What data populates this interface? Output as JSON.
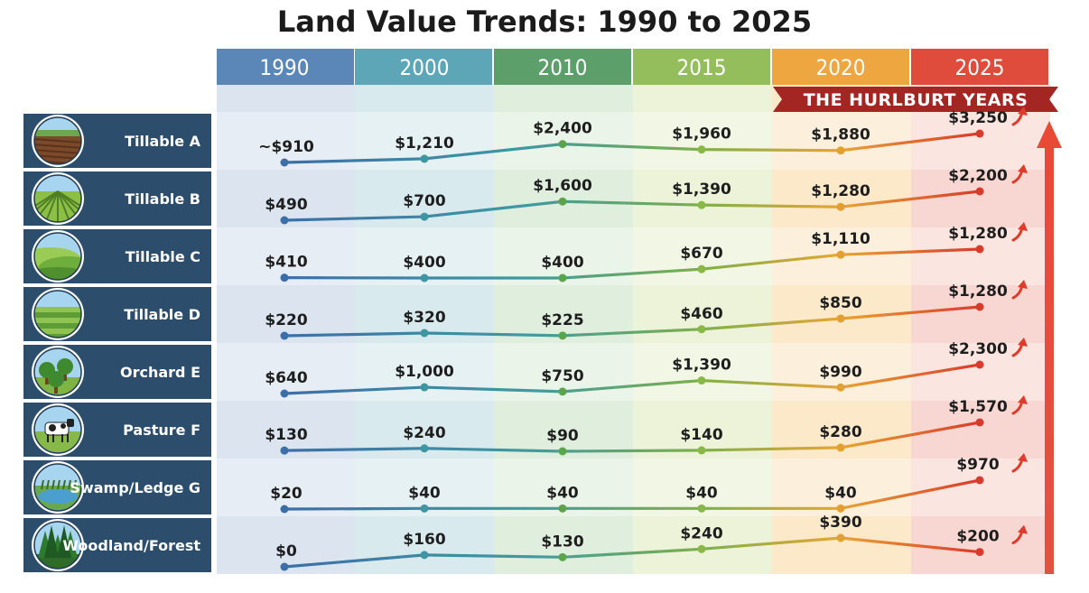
{
  "chart_data": {
    "type": "line",
    "title": "Land Value Trends: 1990 to 2025",
    "band_label": "THE HURLBURT YEARS",
    "years": [
      "1990",
      "2000",
      "2010",
      "2015",
      "2020",
      "2025"
    ],
    "year_colors": [
      "#5b86b8",
      "#5da6b8",
      "#5c9f6b",
      "#94be5c",
      "#eda640",
      "#e04c3c"
    ],
    "series": [
      {
        "name": "Tillable A",
        "values": [
          910,
          1210,
          2400,
          1960,
          1880,
          3250
        ],
        "labels": [
          "~$910",
          "$1,210",
          "$2,400",
          "$1,960",
          "$1,880",
          "$3,250"
        ]
      },
      {
        "name": "Tillable B",
        "values": [
          490,
          700,
          1600,
          1390,
          1280,
          2200
        ],
        "labels": [
          "$490",
          "$700",
          "$1,600",
          "$1,390",
          "$1,280",
          "$2,200"
        ]
      },
      {
        "name": "Tillable C",
        "values": [
          410,
          400,
          400,
          670,
          1110,
          1280
        ],
        "labels": [
          "$410",
          "$400",
          "$400",
          "$670",
          "$1,110",
          "$1,280"
        ]
      },
      {
        "name": "Tillable D",
        "values": [
          220,
          320,
          225,
          460,
          850,
          1280
        ],
        "labels": [
          "$220",
          "$320",
          "$225",
          "$460",
          "$850",
          "$1,280"
        ]
      },
      {
        "name": "Orchard E",
        "values": [
          640,
          1000,
          750,
          1390,
          990,
          2300
        ],
        "labels": [
          "$640",
          "$1,000",
          "$750",
          "$1,390",
          "$990",
          "$2,300"
        ]
      },
      {
        "name": "Pasture F",
        "values": [
          130,
          240,
          90,
          140,
          280,
          1570
        ],
        "labels": [
          "$130",
          "$240",
          "$90",
          "$140",
          "$280",
          "$1,570"
        ]
      },
      {
        "name": "Swamp/Ledge G",
        "values": [
          20,
          40,
          40,
          40,
          40,
          970
        ],
        "labels": [
          "$20",
          "$40",
          "$40",
          "$40",
          "$40",
          "$970"
        ]
      },
      {
        "name": "Woodland/Forest",
        "values": [
          0,
          160,
          130,
          240,
          390,
          200
        ],
        "labels": [
          "$0",
          "$160",
          "$130",
          "$240",
          "$390",
          "$200"
        ]
      }
    ],
    "icons": [
      "plowed-field-icon",
      "crop-rows-icon",
      "rolling-fields-icon",
      "striped-fields-icon",
      "orchard-trees-icon",
      "cow-icon",
      "swamp-pond-icon",
      "pine-forest-icon"
    ]
  }
}
